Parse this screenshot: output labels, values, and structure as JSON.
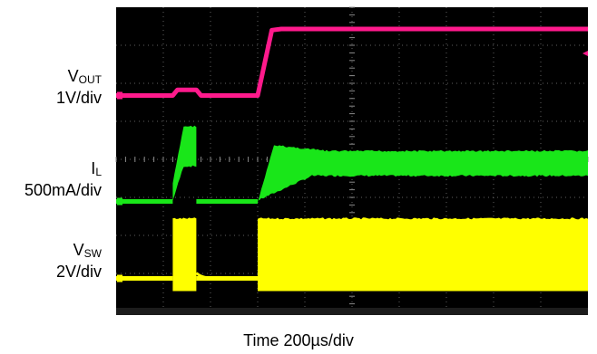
{
  "chart_data": {
    "type": "line",
    "title": "",
    "xlabel": "Time 200µs/div",
    "ylabel": "",
    "grid": true,
    "divisions": {
      "x": 10,
      "y": 8
    },
    "time_per_div_us": 200,
    "xlim_us": [
      0,
      2000
    ],
    "colors": {
      "background": "#000000",
      "grid": "#8a8a8a",
      "vout": "#ff1a8c",
      "il": "#19e619",
      "vsw": "#ffff00"
    },
    "series": [
      {
        "name": "VOUT",
        "label_main": "V",
        "label_sub": "OUT",
        "scale": "1V/div",
        "color": "#ff1a8c",
        "x_us": [
          0,
          240,
          260,
          340,
          360,
          600,
          660,
          700,
          2000
        ],
        "y_div": [
          0,
          0,
          0.15,
          0.15,
          0,
          0,
          1.72,
          1.75,
          1.75
        ]
      },
      {
        "name": "IL",
        "label_main": "I",
        "label_sub": "L",
        "scale": "500mA/div",
        "color": "#19e619",
        "baseline_div": 0,
        "pulse1": {
          "start_us": 240,
          "end_us": 340,
          "peak_top_div": 2.0,
          "peak_bottom_div": 0.9,
          "rise_start_div": 0.5
        },
        "pulse2": {
          "start_us": 600,
          "end_us": 2000,
          "peak_top_div": 1.5,
          "steady_top_div": 1.35,
          "steady_bottom_div": 0.65
        }
      },
      {
        "name": "VSW",
        "label_main": "V",
        "label_sub": "SW",
        "scale": "2V/div",
        "color": "#ffff00",
        "baseline_div": 0,
        "pulse1": {
          "start_us": 240,
          "end_us": 340,
          "high_div": 1.6
        },
        "pulse2": {
          "start_us": 600,
          "end_us": 2000,
          "high_div": 1.6
        }
      }
    ]
  }
}
